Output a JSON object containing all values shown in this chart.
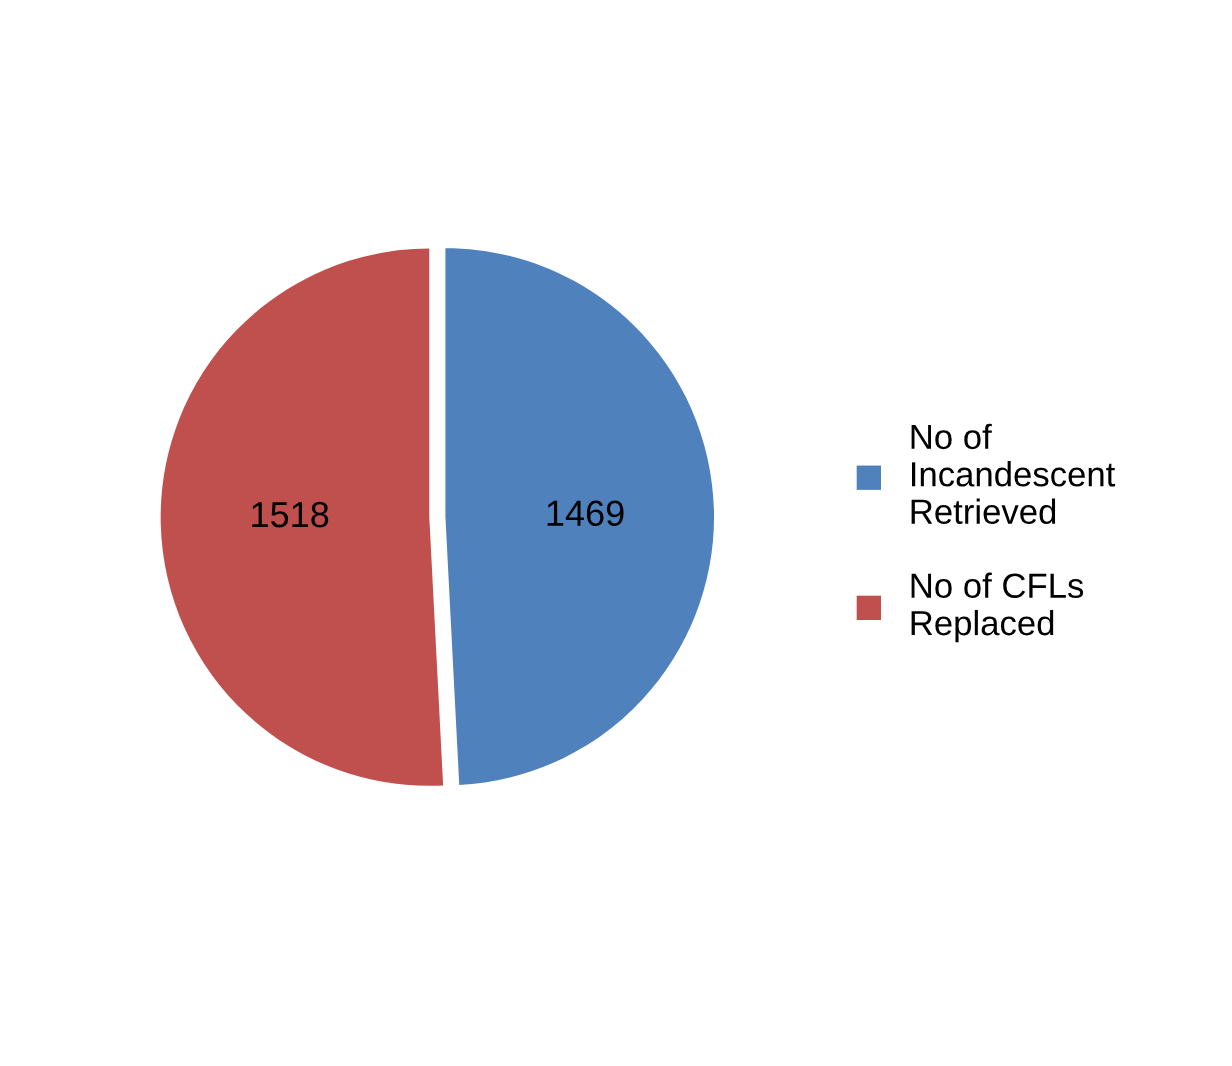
{
  "chart_data": {
    "type": "pie",
    "categories": [
      "No of Incandescent Retrieved",
      "No of CFLs Replaced"
    ],
    "values": [
      1469,
      1518
    ],
    "colors": [
      "#4f81bd",
      "#c0504d"
    ],
    "data_labels": true,
    "legend": "right"
  }
}
